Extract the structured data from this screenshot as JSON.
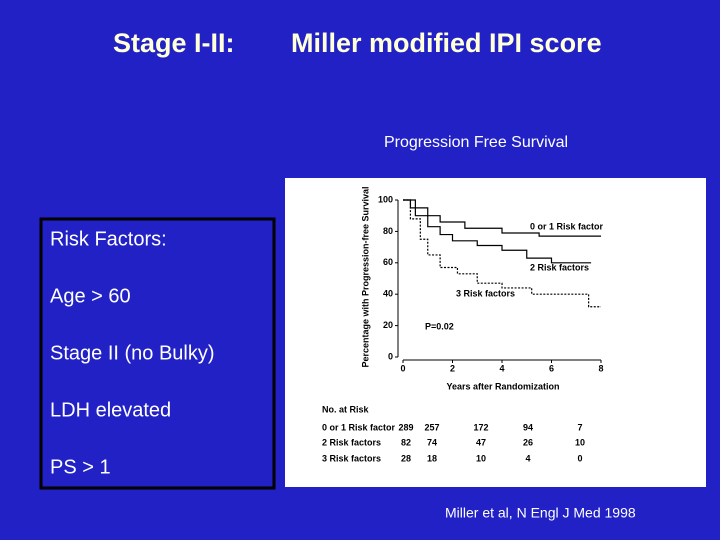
{
  "slide": {
    "title_left": "Stage I-II:",
    "title_right": "Miller modified IPI score",
    "subtitle": "Progression Free Survival",
    "citation": "Miller et al, N Engl J Med  1998"
  },
  "risk_factors": {
    "heading": "Risk Factors:",
    "items": [
      "Age > 60",
      "Stage  II (no Bulky)",
      "LDH  elevated",
      "PS > 1"
    ]
  },
  "chart_data": {
    "type": "line",
    "step": true,
    "x_label": "Years after Randomization",
    "y_label": "Percentage with Progression-free Survival",
    "annotation": "P=0.02",
    "xlim": [
      0,
      8
    ],
    "ylim": [
      0,
      100
    ],
    "xticks": [
      0,
      2,
      4,
      6,
      8
    ],
    "yticks": [
      0,
      20,
      40,
      60,
      80,
      100
    ],
    "series": [
      {
        "name": "0 or 1 Risk factor",
        "color": "#000000",
        "x": [
          0,
          0.3,
          0.3,
          1,
          1,
          1.5,
          1.5,
          2.5,
          2.5,
          4,
          4,
          5.5,
          5.5,
          8
        ],
        "values": [
          100,
          100,
          95,
          95,
          90,
          90,
          86,
          86,
          82,
          82,
          79,
          79,
          77,
          77
        ]
      },
      {
        "name": "2 Risk factors",
        "color": "#000000",
        "x": [
          0,
          0.5,
          0.5,
          1,
          1,
          1.5,
          1.5,
          2,
          2,
          3,
          3,
          4,
          4,
          5,
          5,
          6,
          6,
          7.6
        ],
        "values": [
          100,
          100,
          90,
          90,
          83,
          83,
          78,
          78,
          74,
          74,
          71,
          71,
          68,
          68,
          63,
          63,
          60,
          60
        ]
      },
      {
        "name": "3 Risk factors",
        "color": "#000000",
        "x": [
          0,
          0.3,
          0.3,
          0.7,
          0.7,
          1,
          1,
          1.5,
          1.5,
          2.2,
          2.2,
          3,
          3,
          4,
          4,
          5.2,
          5.2,
          7.5,
          7.5,
          8
        ],
        "values": [
          100,
          100,
          88,
          88,
          75,
          75,
          65,
          65,
          57,
          57,
          53,
          53,
          47,
          47,
          44,
          44,
          40,
          40,
          32,
          32
        ]
      }
    ]
  },
  "risk_table": {
    "title": "No. at Risk",
    "rows": [
      {
        "label": "0 or 1 Risk factor",
        "counts": [
          "289",
          "257",
          "172",
          "94",
          "7"
        ]
      },
      {
        "label": "2 Risk factors",
        "counts": [
          "82",
          "74",
          "47",
          "26",
          "10"
        ]
      },
      {
        "label": "3 Risk factors",
        "counts": [
          "28",
          "18",
          "10",
          "4",
          "0"
        ]
      }
    ]
  }
}
